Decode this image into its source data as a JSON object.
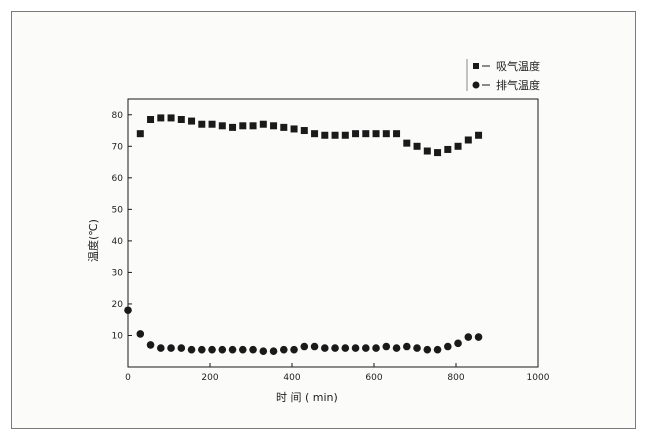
{
  "chart_data": {
    "type": "scatter",
    "xlabel": "时 间 ( min)",
    "ylabel": "温度(℃)",
    "xlim": [
      0,
      1000
    ],
    "ylim": [
      0,
      85
    ],
    "x_ticks": [
      0,
      200,
      400,
      600,
      800,
      1000
    ],
    "y_ticks": [
      10,
      20,
      30,
      40,
      50,
      60,
      70,
      80
    ],
    "x_tick_labels": [
      "0",
      "200",
      "400",
      "600",
      "800",
      "1000"
    ],
    "y_tick_labels": [
      "10",
      "20",
      "30",
      "40",
      "50",
      "60",
      "70",
      "80"
    ],
    "legend_position": "top-right",
    "grid": false,
    "series": [
      {
        "name": "吸气温度",
        "marker": "square",
        "color": "#1a1a1a",
        "points": [
          [
            30,
            74
          ],
          [
            55,
            78.5
          ],
          [
            80,
            79
          ],
          [
            105,
            79
          ],
          [
            130,
            78.5
          ],
          [
            155,
            78
          ],
          [
            180,
            77
          ],
          [
            205,
            77
          ],
          [
            230,
            76.5
          ],
          [
            255,
            76
          ],
          [
            280,
            76.5
          ],
          [
            305,
            76.5
          ],
          [
            330,
            77
          ],
          [
            355,
            76.5
          ],
          [
            380,
            76
          ],
          [
            405,
            75.5
          ],
          [
            430,
            75
          ],
          [
            455,
            74
          ],
          [
            480,
            73.5
          ],
          [
            505,
            73.5
          ],
          [
            530,
            73.5
          ],
          [
            555,
            74
          ],
          [
            580,
            74
          ],
          [
            605,
            74
          ],
          [
            630,
            74
          ],
          [
            655,
            74
          ],
          [
            680,
            71
          ],
          [
            705,
            70
          ],
          [
            730,
            68.5
          ],
          [
            755,
            68
          ],
          [
            780,
            69
          ],
          [
            805,
            70
          ],
          [
            830,
            72
          ],
          [
            855,
            73.5
          ]
        ]
      },
      {
        "name": "排气温度",
        "marker": "circle",
        "color": "#1a1a1a",
        "points": [
          [
            0,
            18
          ],
          [
            30,
            10.5
          ],
          [
            55,
            7
          ],
          [
            80,
            6
          ],
          [
            105,
            6
          ],
          [
            130,
            6
          ],
          [
            155,
            5.5
          ],
          [
            180,
            5.5
          ],
          [
            205,
            5.5
          ],
          [
            230,
            5.5
          ],
          [
            255,
            5.5
          ],
          [
            280,
            5.5
          ],
          [
            305,
            5.5
          ],
          [
            330,
            5
          ],
          [
            355,
            5
          ],
          [
            380,
            5.5
          ],
          [
            405,
            5.5
          ],
          [
            430,
            6.5
          ],
          [
            455,
            6.5
          ],
          [
            480,
            6
          ],
          [
            505,
            6
          ],
          [
            530,
            6
          ],
          [
            555,
            6
          ],
          [
            580,
            6
          ],
          [
            605,
            6
          ],
          [
            630,
            6.5
          ],
          [
            655,
            6
          ],
          [
            680,
            6.5
          ],
          [
            705,
            6
          ],
          [
            730,
            5.5
          ],
          [
            755,
            5.5
          ],
          [
            780,
            6.5
          ],
          [
            805,
            7.5
          ],
          [
            830,
            9.5
          ],
          [
            855,
            9.5
          ]
        ]
      }
    ]
  }
}
